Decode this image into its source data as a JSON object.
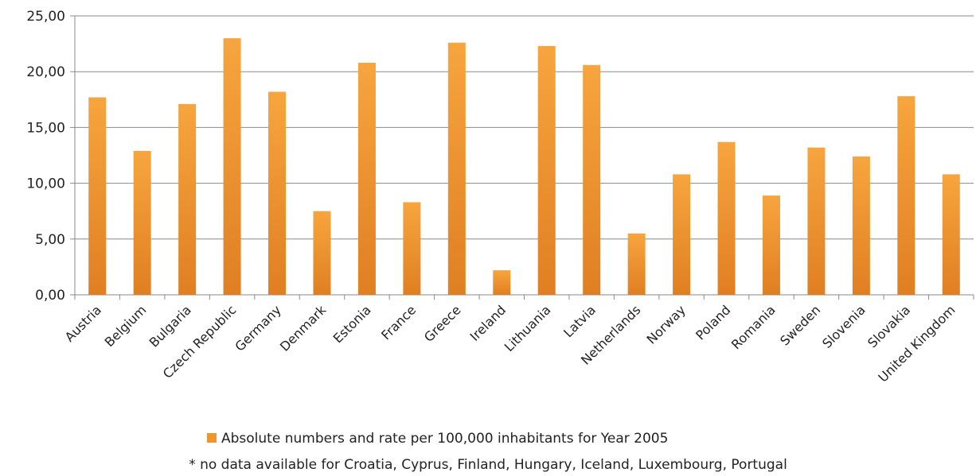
{
  "chart_data": {
    "type": "bar",
    "categories": [
      "Austria",
      "Belgium",
      "Bulgaria",
      "Czech Republic",
      "Germany",
      "Denmark",
      "Estonia",
      "France",
      "Greece",
      "Ireland",
      "Lithuania",
      "Latvia",
      "Netherlands",
      "Norway",
      "Poland",
      "Romania",
      "Sweden",
      "Slovenia",
      "Slovakia",
      "United Kingdom"
    ],
    "series": [
      {
        "name": "Absolute numbers and rate per 100,000 inhabitants for Year 2005",
        "values": [
          17.7,
          12.9,
          17.1,
          23.0,
          18.2,
          7.5,
          20.8,
          8.3,
          22.6,
          2.2,
          22.3,
          20.6,
          5.5,
          10.8,
          13.7,
          8.9,
          13.2,
          12.4,
          17.8,
          10.8
        ],
        "color": "#f0952c"
      }
    ],
    "ylim": [
      0,
      25
    ],
    "yticks": [
      "0,00",
      "5,00",
      "10,00",
      "15,00",
      "20,00",
      "25,00"
    ],
    "grid": true,
    "legend_position": "bottom",
    "footnote": "* no data available for Croatia, Cyprus, Finland, Hungary, Iceland, Luxembourg, Portugal"
  }
}
